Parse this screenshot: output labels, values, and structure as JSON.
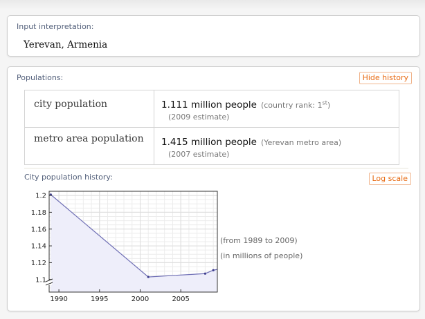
{
  "input_pod": {
    "title": "Input interpretation:",
    "value": "Yerevan, Armenia"
  },
  "population_pod": {
    "title": "Populations:",
    "hide_history": "Hide history",
    "rows": [
      {
        "name": "city population",
        "value": "1.111 million people",
        "rank_prefix": "(country rank: 1",
        "rank_sup": "st",
        "rank_suffix": ")",
        "estimate": "(2009 estimate)"
      },
      {
        "name": "metro area population",
        "value": "1.415 million people",
        "detail": "(Yerevan metro area)",
        "estimate": "(2007 estimate)"
      }
    ],
    "history_title": "City population history:",
    "log_scale": "Log scale",
    "note_range": "(from 1989 to 2009)",
    "note_units": "(in millions of people)"
  },
  "chart_data": {
    "type": "area",
    "title": "",
    "xlabel": "",
    "ylabel": "",
    "xlim": [
      1988.8,
      2009.5
    ],
    "ylim": [
      1.085,
      1.205
    ],
    "x_ticks": [
      1990,
      1995,
      2000,
      2005
    ],
    "y_ticks": [
      1.1,
      1.12,
      1.14,
      1.16,
      1.18,
      1.2
    ],
    "y_axis_break": true,
    "series": [
      {
        "x": [
          1989,
          2001,
          2008,
          2009
        ],
        "y": [
          1.201,
          1.103,
          1.107,
          1.111
        ]
      }
    ],
    "grid": true,
    "line_color": "#6f6fb5",
    "fill_color": "#eeeefa"
  }
}
